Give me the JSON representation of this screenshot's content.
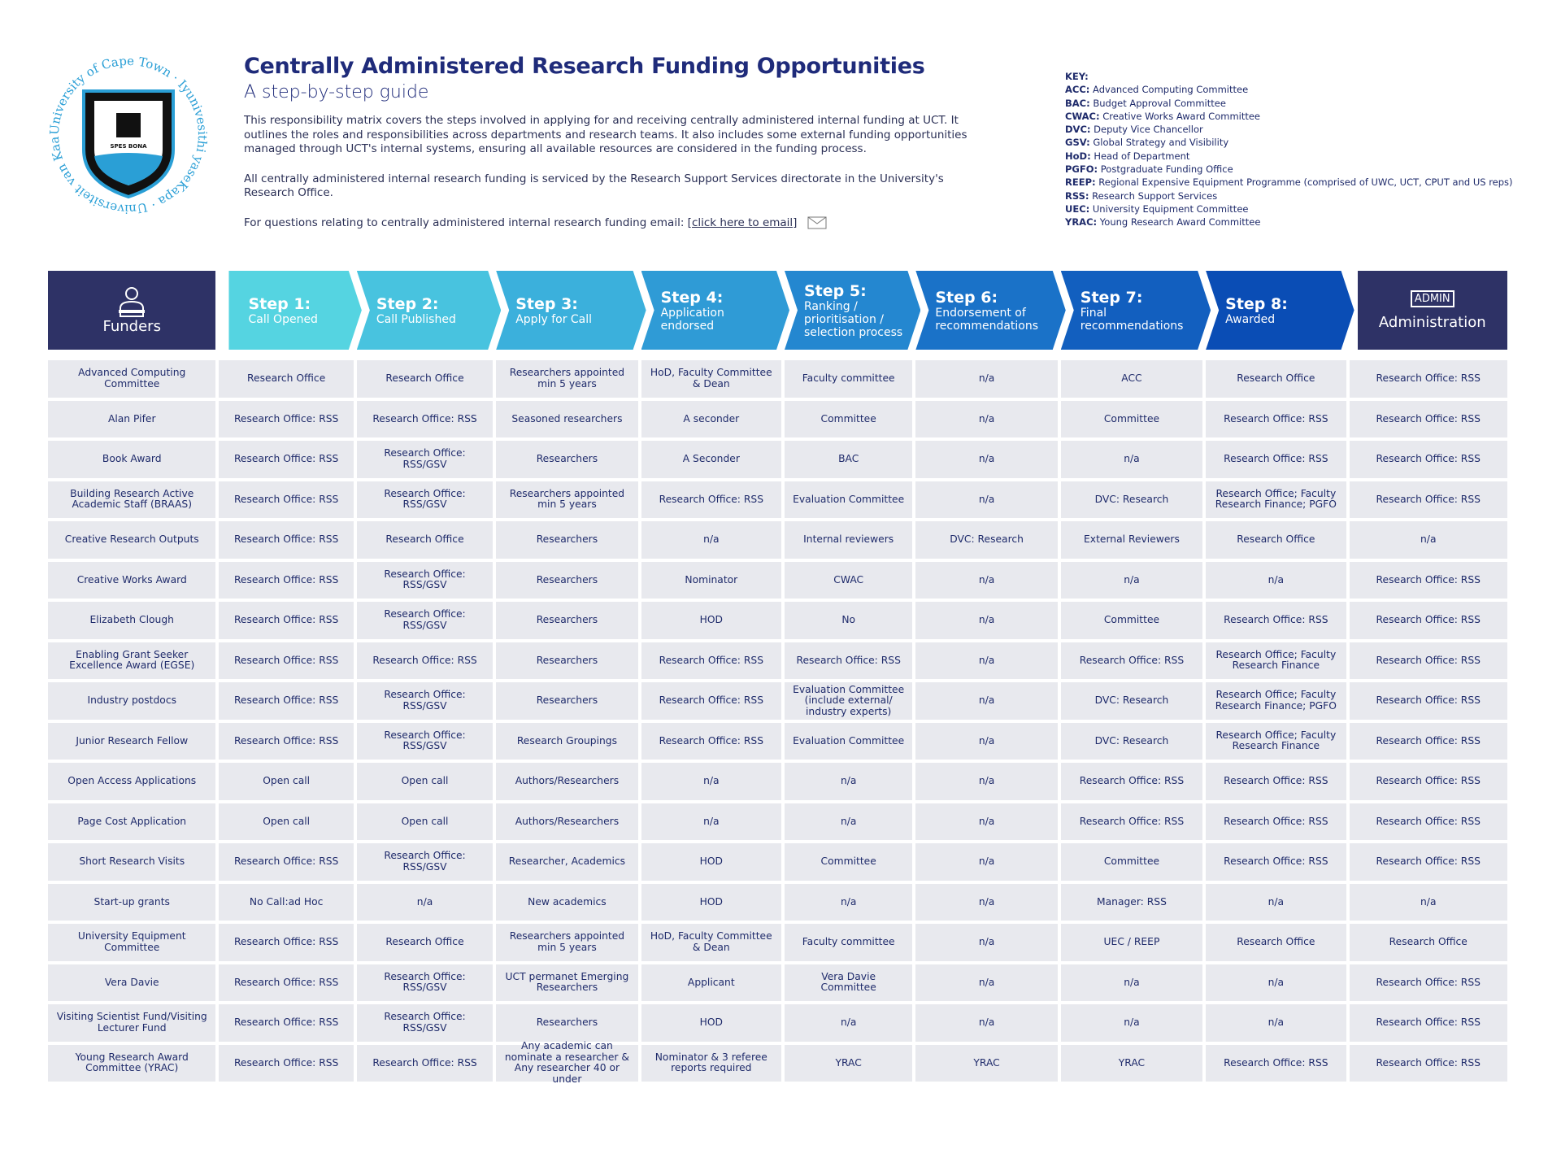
{
  "logo": {
    "ring_text": "University of Cape Town · Iyunivesithi yaseKapa · Universiteit van Kaapstad ·",
    "motto": "SPES BONA"
  },
  "header": {
    "title": "Centrally Administered Research Funding Opportunities",
    "subtitle": "A step-by-step guide",
    "paragraphs": [
      "This responsibility matrix covers the steps involved in applying for and receiving centrally administered internal funding at UCT. It outlines the roles and responsibilities across departments and research teams. It also includes some external funding opportunities managed through UCT's internal systems, ensuring all available resources are considered in the funding process.",
      "All centrally administered internal research funding is serviced by the Research Support Services directorate in the University's Research Office."
    ],
    "email_prefix": "For questions relating to centrally administered internal research funding email:",
    "email_link": "[click here to email]"
  },
  "key": {
    "title": "KEY:",
    "entries": [
      {
        "abbr": "ACC:",
        "desc": "Advanced Computing Committee"
      },
      {
        "abbr": "BAC:",
        "desc": "Budget Approval Committee"
      },
      {
        "abbr": "CWAC:",
        "desc": "Creative Works Award Committee"
      },
      {
        "abbr": "DVC:",
        "desc": "Deputy Vice Chancellor"
      },
      {
        "abbr": "GSV:",
        "desc": "Global Strategy and Visibility"
      },
      {
        "abbr": "HoD:",
        "desc": "Head of Department"
      },
      {
        "abbr": "PGFO:",
        "desc": "Postgraduate Funding Office"
      },
      {
        "abbr": "REEP:",
        "desc": "Regional Expensive Equipment Programme (comprised of UWC, UCT, CPUT and US reps)"
      },
      {
        "abbr": "RSS:",
        "desc": "Research Support Services"
      },
      {
        "abbr": "UEC:",
        "desc": "University Equipment Committee"
      },
      {
        "abbr": "YRAC:",
        "desc": "Young Research Award Committee"
      }
    ]
  },
  "table": {
    "funders_label": "Funders",
    "admin_label": "Administration",
    "admin_icon": "ADMIN",
    "steps": [
      {
        "step": "Step 1:",
        "label": "Call Opened"
      },
      {
        "step": "Step 2:",
        "label": "Call Published"
      },
      {
        "step": "Step 3:",
        "label": "Apply for Call"
      },
      {
        "step": "Step 4:",
        "label": "Application endorsed"
      },
      {
        "step": "Step 5:",
        "label": "Ranking / prioritisation / selection process"
      },
      {
        "step": "Step 6:",
        "label": "Endorsement of recommendations"
      },
      {
        "step": "Step 7:",
        "label": "Final recommendations"
      },
      {
        "step": "Step 8:",
        "label": "Awarded"
      }
    ],
    "rows": [
      [
        "Advanced Computing Committee",
        "Research Office",
        "Research Office",
        "Researchers appointed min 5 years",
        "HoD, Faculty Committee & Dean",
        "Faculty committee",
        "n/a",
        "ACC",
        "Research Office",
        "Research Office: RSS"
      ],
      [
        "Alan Pifer",
        "Research Office: RSS",
        "Research Office: RSS",
        "Seasoned researchers",
        "A seconder",
        "Committee",
        "n/a",
        "Committee",
        "Research Office: RSS",
        "Research Office: RSS"
      ],
      [
        "Book Award",
        "Research Office: RSS",
        "Research Office: RSS/GSV",
        "Researchers",
        "A Seconder",
        "BAC",
        "n/a",
        "n/a",
        "Research Office: RSS",
        "Research Office: RSS"
      ],
      [
        "Building Research Active Academic Staff (BRAAS)",
        "Research Office: RSS",
        "Research Office: RSS/GSV",
        "Researchers appointed min 5 years",
        "Research Office: RSS",
        "Evaluation Committee",
        "n/a",
        "DVC: Research",
        "Research Office; Faculty Research Finance; PGFO",
        "Research Office: RSS"
      ],
      [
        "Creative Research Outputs",
        "Research Office: RSS",
        "Research Office",
        "Researchers",
        "n/a",
        "Internal reviewers",
        "DVC: Research",
        "External Reviewers",
        "Research Office",
        "n/a"
      ],
      [
        "Creative Works Award",
        "Research Office: RSS",
        "Research Office: RSS/GSV",
        "Researchers",
        "Nominator",
        "CWAC",
        "n/a",
        "n/a",
        "n/a",
        "Research Office: RSS"
      ],
      [
        "Elizabeth Clough",
        "Research Office: RSS",
        "Research Office: RSS/GSV",
        "Researchers",
        "HOD",
        "No",
        "n/a",
        "Committee",
        "Research Office: RSS",
        "Research Office: RSS"
      ],
      [
        "Enabling Grant Seeker Excellence Award (EGSE)",
        "Research Office: RSS",
        "Research Office: RSS",
        "Researchers",
        "Research Office: RSS",
        "Research Office: RSS",
        "n/a",
        "Research Office: RSS",
        "Research Office; Faculty Research Finance",
        "Research Office: RSS"
      ],
      [
        "Industry postdocs",
        "Research Office: RSS",
        "Research Office: RSS/GSV",
        "Researchers",
        "Research Office: RSS",
        "Evaluation Committee (include external/ industry experts)",
        "n/a",
        "DVC: Research",
        "Research Office; Faculty Research Finance; PGFO",
        "Research Office: RSS"
      ],
      [
        "Junior Research Fellow",
        "Research Office: RSS",
        "Research Office: RSS/GSV",
        "Research Groupings",
        "Research Office: RSS",
        "Evaluation Committee",
        "n/a",
        "DVC: Research",
        "Research Office; Faculty Research Finance",
        "Research Office: RSS"
      ],
      [
        "Open Access Applications",
        "Open call",
        "Open call",
        "Authors/Researchers",
        "n/a",
        "n/a",
        "n/a",
        "Research Office: RSS",
        "Research Office: RSS",
        "Research Office: RSS"
      ],
      [
        "Page Cost Application",
        "Open call",
        "Open call",
        "Authors/Researchers",
        "n/a",
        "n/a",
        "n/a",
        "Research Office: RSS",
        "Research Office: RSS",
        "Research Office: RSS"
      ],
      [
        "Short Research Visits",
        "Research Office: RSS",
        "Research Office: RSS/GSV",
        "Researcher, Academics",
        "HOD",
        "Committee",
        "n/a",
        "Committee",
        "Research Office: RSS",
        "Research Office: RSS"
      ],
      [
        "Start-up grants",
        "No Call:ad Hoc",
        "n/a",
        "New academics",
        "HOD",
        "n/a",
        "n/a",
        "Manager: RSS",
        "n/a",
        "n/a"
      ],
      [
        "University Equipment Committee",
        "Research Office: RSS",
        "Research Office",
        "Researchers appointed min 5 years",
        "HoD, Faculty Committee & Dean",
        "Faculty committee",
        "n/a",
        "UEC / REEP",
        "Research Office",
        "Research Office"
      ],
      [
        "Vera Davie",
        "Research Office: RSS",
        "Research Office: RSS/GSV",
        "UCT permanet Emerging Researchers",
        "Applicant",
        "Vera Davie Committee",
        "n/a",
        "n/a",
        "n/a",
        "Research Office: RSS"
      ],
      [
        "Visiting Scientist Fund/Visiting Lecturer Fund",
        "Research Office: RSS",
        "Research Office: RSS/GSV",
        "Researchers",
        "HOD",
        "n/a",
        "n/a",
        "n/a",
        "n/a",
        "Research Office: RSS"
      ],
      [
        "Young Research Award Committee (YRAC)",
        "Research Office: RSS",
        "Research Office: RSS",
        "Any academic can nominate a researcher & Any researcher 40 or under",
        "Nominator & 3 referee reports required",
        "YRAC",
        "YRAC",
        "YRAC",
        "Research Office: RSS",
        "Research Office: RSS"
      ]
    ]
  }
}
